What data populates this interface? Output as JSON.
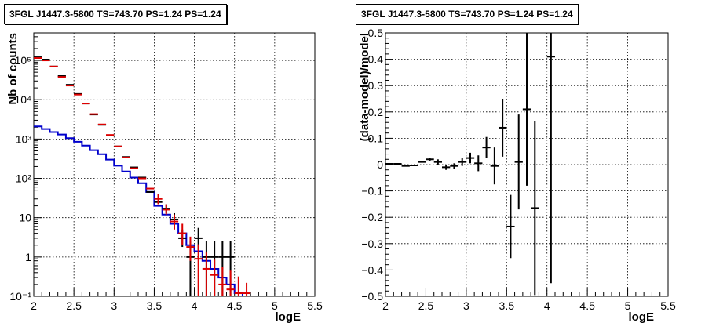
{
  "panels": [
    {
      "id": "left",
      "title": "3FGL J1447.3-5800 TS=743.70 PS=1.24 PS=1.24",
      "chart_data": {
        "type": "line",
        "xlabel": "logE",
        "ylabel": "Nb of counts",
        "xlim": [
          2,
          5.5
        ],
        "ylim": [
          0.1,
          500000
        ],
        "y_log": true,
        "grid": true,
        "x_ticks": [
          "2",
          "2.5",
          "3",
          "3.5",
          "4",
          "4.5",
          "5",
          "5.5"
        ],
        "y_ticks": [
          {
            "v": 0.1,
            "label": "10⁻¹"
          },
          {
            "v": 1,
            "label": "1"
          },
          {
            "v": 10,
            "label": "10"
          },
          {
            "v": 100,
            "label": "10²"
          },
          {
            "v": 1000,
            "label": "10³"
          },
          {
            "v": 10000,
            "label": "10⁴"
          },
          {
            "v": 100000,
            "label": "10⁵"
          }
        ],
        "bin_width": 0.1,
        "series": [
          {
            "kind": "step",
            "color": "#0000cc",
            "x": [
              2.05,
              2.15,
              2.25,
              2.35,
              2.45,
              2.55,
              2.65,
              2.75,
              2.85,
              2.95,
              3.05,
              3.15,
              3.25,
              3.35,
              3.45,
              3.55,
              3.65,
              3.75,
              3.85,
              3.95,
              4.05,
              4.15,
              4.25,
              4.35,
              4.45,
              4.55,
              4.65,
              4.75,
              4.85,
              4.95,
              5.05,
              5.15,
              5.25,
              5.35,
              5.45
            ],
            "y": [
              2100,
              1800,
              1500,
              1300,
              1050,
              850,
              680,
              520,
              410,
              300,
              210,
              150,
              105,
              75,
              45,
              20,
              12,
              7,
              4,
              2,
              1.4,
              0.8,
              0.5,
              0.3,
              0.2,
              0.12,
              0.1,
              0.1,
              0.1,
              0.1,
              0.1,
              0.1,
              0.1,
              0.1,
              0.1
            ]
          },
          {
            "kind": "points",
            "color": "#000000",
            "x": [
              2.05,
              2.15,
              2.25,
              2.35,
              2.45,
              2.55,
              2.65,
              2.75,
              2.85,
              2.95,
              3.05,
              3.15,
              3.25,
              3.35,
              3.45,
              3.55,
              3.65,
              3.75,
              3.85,
              3.95,
              4.05,
              4.15,
              4.25,
              4.35,
              4.45
            ],
            "y": [
              120000,
              105000,
              70000,
              40000,
              24000,
              14000,
              8000,
              4200,
              2300,
              1250,
              650,
              350,
              190,
              105,
              45,
              25,
              17,
              9,
              3,
              1,
              3,
              1,
              1,
              1,
              1
            ],
            "err_lo": [
              0,
              0,
              0,
              0,
              0,
              0,
              0,
              0,
              0,
              0,
              0,
              0,
              0,
              0,
              0,
              0,
              4,
              3,
              1.2,
              1,
              1.5,
              1,
              1,
              1,
              1
            ],
            "err_hi": [
              0,
              0,
              0,
              0,
              0,
              0,
              0,
              0,
              0,
              0,
              0,
              0,
              0,
              0,
              0,
              0,
              5,
              4,
              2,
              1.5,
              2.5,
              1.5,
              1.5,
              1.5,
              1.5
            ]
          },
          {
            "kind": "points",
            "color": "#dd0000",
            "x": [
              2.05,
              2.15,
              2.25,
              2.35,
              2.45,
              2.55,
              2.65,
              2.75,
              2.85,
              2.95,
              3.05,
              3.15,
              3.25,
              3.35,
              3.45,
              3.55,
              3.65,
              3.75,
              3.85,
              3.95,
              4.05,
              4.15,
              4.25,
              4.35,
              4.45,
              4.55,
              4.65
            ],
            "y": [
              115000,
              100000,
              70000,
              38000,
              23000,
              13500,
              8000,
              4300,
              2350,
              1270,
              650,
              340,
              180,
              100,
              55,
              30,
              16,
              8,
              4,
              1.8,
              0.9,
              0.5,
              0.35,
              0.2,
              0.15,
              0.12,
              0.12
            ],
            "err_lo": [
              0,
              0,
              0,
              0,
              0,
              0,
              0,
              0,
              0,
              0,
              0,
              0,
              0,
              0,
              0,
              8,
              4,
              3,
              2,
              1,
              0.9,
              0.5,
              0.35,
              0.2,
              0.15,
              0.12,
              0.12
            ],
            "err_hi": [
              0,
              0,
              0,
              0,
              0,
              0,
              0,
              0,
              0,
              0,
              0,
              0,
              0,
              0,
              0,
              10,
              6,
              4,
              3,
              1.5,
              1.2,
              0.8,
              0.5,
              0.35,
              0.3,
              0.2,
              0.1
            ]
          }
        ]
      }
    },
    {
      "id": "right",
      "title": "3FGL J1447.3-5800 TS=743.70 PS=1.24 PS=1.24",
      "chart_data": {
        "type": "scatter",
        "xlabel": "logE",
        "ylabel": "(data-model)/model",
        "xlim": [
          2,
          5.5
        ],
        "ylim": [
          -0.5,
          0.5
        ],
        "y_log": false,
        "grid": true,
        "x_ticks": [
          "2",
          "2.5",
          "3",
          "3.5",
          "4",
          "4.5",
          "5",
          "5.5"
        ],
        "y_ticks": [
          {
            "v": -0.5,
            "label": "−0.5"
          },
          {
            "v": -0.4,
            "label": "−0.4"
          },
          {
            "v": -0.3,
            "label": "−0.3"
          },
          {
            "v": -0.2,
            "label": "−0.2"
          },
          {
            "v": -0.1,
            "label": "−0.1"
          },
          {
            "v": 0,
            "label": "0"
          },
          {
            "v": 0.1,
            "label": "0.1"
          },
          {
            "v": 0.2,
            "label": "0.2"
          },
          {
            "v": 0.3,
            "label": "0.3"
          },
          {
            "v": 0.4,
            "label": "0.4"
          },
          {
            "v": 0.5,
            "label": "0.5"
          }
        ],
        "bin_width": 0.1,
        "series": [
          {
            "kind": "points",
            "color": "#000000",
            "x": [
              2.05,
              2.15,
              2.25,
              2.35,
              2.45,
              2.55,
              2.65,
              2.75,
              2.85,
              2.95,
              3.05,
              3.15,
              3.25,
              3.35,
              3.45,
              3.55,
              3.65,
              3.75,
              3.85,
              4.05
            ],
            "y": [
              0.003,
              0.003,
              -0.005,
              -0.003,
              0.01,
              0.02,
              0.01,
              -0.01,
              -0.005,
              0.01,
              0.025,
              0.005,
              0.065,
              -0.005,
              0.14,
              -0.235,
              0.01,
              0.21,
              -0.165,
              0.41
            ],
            "err_lo": [
              0,
              0,
              0,
              0,
              0,
              0.005,
              0.01,
              0.01,
              0.01,
              0.015,
              0.02,
              0.03,
              0.04,
              0.07,
              0.11,
              0.12,
              0.18,
              0.29,
              0.33,
              0.86
            ],
            "err_hi": [
              0,
              0,
              0,
              0,
              0,
              0.005,
              0.01,
              0.01,
              0.01,
              0.015,
              0.02,
              0.03,
              0.04,
              0.07,
              0.11,
              0.12,
              0.18,
              0.29,
              0.33,
              0.86
            ]
          }
        ]
      }
    }
  ]
}
